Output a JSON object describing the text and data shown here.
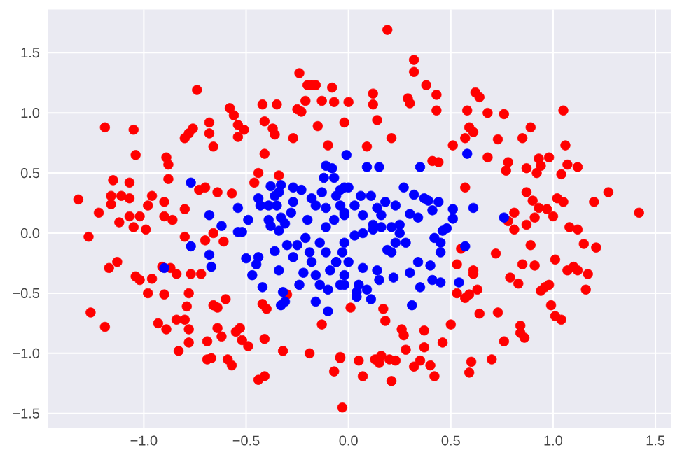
{
  "chart_data": {
    "type": "scatter",
    "series": [
      {
        "color": "#ff0000",
        "x": [
          -1.32,
          -1.27,
          -1.22,
          -1.19,
          -1.16,
          -1.16,
          -1.15,
          -1.12,
          -1.11,
          -1.07,
          -1.07,
          -1.07,
          -1.05,
          -1.04,
          -1.05,
          -1.02,
          -0.99,
          -0.98,
          -0.96,
          -0.9,
          -0.89,
          -0.88,
          -0.88,
          -0.9,
          -0.86,
          -0.8,
          -0.78,
          -0.76,
          -0.8,
          -0.74,
          -0.73,
          -0.7,
          -0.68,
          -0.68,
          -0.66,
          -0.64,
          -0.57,
          -0.58,
          -0.56,
          -0.54,
          -0.54,
          -0.51,
          -0.46,
          -0.44,
          -0.42,
          -0.41,
          -0.41,
          -0.37,
          -0.36,
          -0.35,
          -0.34,
          -0.27,
          -0.25,
          -0.23,
          -0.24,
          -0.2,
          -0.18,
          -0.16,
          -0.21,
          -0.13,
          -0.08,
          -0.07,
          -0.1,
          -0.15,
          -0.02,
          0.0,
          0.19,
          0.32,
          0.32,
          0.38,
          0.43,
          0.43,
          0.29,
          0.3,
          0.12,
          0.12,
          0.14,
          0.21,
          0.09,
          0.41,
          0.44,
          0.51,
          0.57,
          0.57,
          0.59,
          0.61,
          0.58,
          0.62,
          0.64,
          0.68,
          0.76,
          0.73,
          0.68,
          0.78,
          0.77,
          0.85,
          0.89,
          0.87,
          0.92,
          0.93,
          0.94,
          0.98,
          1.05,
          1.06,
          1.07,
          1.12,
          1.04,
          0.87,
          0.9,
          0.93,
          0.97,
          1.0,
          1.02,
          1.05,
          0.91,
          0.87,
          0.81,
          0.81,
          0.78,
          1.2,
          1.27,
          1.42,
          1.08,
          1.12,
          0.55,
          0.72,
          0.53,
          0.61,
          0.61,
          0.79,
          0.83,
          0.85,
          0.89,
          0.91,
          1.01,
          1.07,
          1.1,
          1.12,
          1.15,
          1.21,
          1.17,
          1.16,
          0.94,
          0.96,
          0.98,
          0.53,
          0.57,
          0.59,
          0.63,
          0.99,
          1.01,
          1.04,
          0.73,
          0.64,
          0.5,
          0.84,
          0.84,
          0.86,
          0.76,
          0.7,
          0.6,
          0.59,
          0.46,
          0.4,
          0.42,
          0.35,
          0.32,
          0.37,
          0.37,
          0.28,
          0.26,
          0.27,
          0.23,
          0.2,
          0.16,
          0.13,
          0.15,
          0.21,
          0.05,
          0.07,
          -0.04,
          -0.07,
          -0.03,
          0.01,
          0.17,
          0.18,
          -1.19,
          -1.26,
          -1.17,
          -1.13,
          -1.04,
          -1.02,
          -0.96,
          -0.98,
          -0.9,
          -0.91,
          -0.87,
          -0.84,
          -0.77,
          -0.72,
          -0.78,
          -0.79,
          -0.93,
          -0.89,
          -0.84,
          -0.8,
          -0.78,
          -0.78,
          -0.83,
          -0.69,
          -0.69,
          -0.67,
          -0.66,
          -0.64,
          -0.6,
          -0.64,
          -0.62,
          -0.59,
          -0.57,
          -0.55,
          -0.53,
          -0.52,
          -0.49,
          -0.44,
          -0.41,
          -0.42,
          -0.4,
          -0.41,
          -0.32,
          -0.3,
          -0.19,
          -0.13,
          -0.04,
          -0.7,
          -0.66,
          -0.61,
          -0.8
        ],
        "values": [
          0.28,
          -0.03,
          0.17,
          0.88,
          0.24,
          0.31,
          0.44,
          0.09,
          0.31,
          0.29,
          0.42,
          0.14,
          0.86,
          0.65,
          0.05,
          0.14,
          0.03,
          0.23,
          0.31,
          0.26,
          0.63,
          0.57,
          0.45,
          0.14,
          0.11,
          0.79,
          0.83,
          0.87,
          0.2,
          1.19,
          0.36,
          0.38,
          0.83,
          0.92,
          0.72,
          0.34,
          0.33,
          1.04,
          0.98,
          0.9,
          0.8,
          0.86,
          0.42,
          0.5,
          1.07,
          0.93,
          0.66,
          0.87,
          0.82,
          1.07,
          0.48,
          0.79,
          1.03,
          1.01,
          1.33,
          1.23,
          1.23,
          1.23,
          1.1,
          1.1,
          1.21,
          1.09,
          0.73,
          0.89,
          0.92,
          1.09,
          1.69,
          1.44,
          1.34,
          1.23,
          1.15,
          1.02,
          1.12,
          1.08,
          1.16,
          1.07,
          0.94,
          0.79,
          0.72,
          0.6,
          0.59,
          0.73,
          0.38,
          0.79,
          0.88,
          0.84,
          1.02,
          1.17,
          1.13,
          1.0,
          0.99,
          0.78,
          0.63,
          0.59,
          0.52,
          0.79,
          0.88,
          0.54,
          0.5,
          0.62,
          0.56,
          0.63,
          1.02,
          0.73,
          0.57,
          0.55,
          0.49,
          0.34,
          0.27,
          0.21,
          0.2,
          0.14,
          0.29,
          0.26,
          0.13,
          0.07,
          0.17,
          0.03,
          0.1,
          0.26,
          0.34,
          0.17,
          0.05,
          0.03,
          -0.13,
          -0.17,
          -0.26,
          -0.34,
          -0.31,
          -0.37,
          -0.42,
          -0.26,
          -0.1,
          -0.27,
          -0.22,
          -0.31,
          -0.28,
          -0.31,
          -0.09,
          -0.12,
          -0.34,
          -0.47,
          -0.48,
          -0.45,
          -0.43,
          -0.5,
          -0.54,
          -0.51,
          -0.47,
          -0.6,
          -0.69,
          -0.72,
          -0.66,
          -0.67,
          -0.76,
          -0.77,
          -0.83,
          -0.87,
          -0.9,
          -1.05,
          -1.07,
          -1.16,
          -0.91,
          -1.1,
          -1.19,
          -1.06,
          -1.11,
          -0.81,
          -0.95,
          -0.97,
          -0.8,
          -0.85,
          -1.06,
          -1.05,
          -1.02,
          -1.05,
          -1.08,
          -1.23,
          -1.06,
          -1.19,
          -1.04,
          -1.15,
          -1.45,
          -0.62,
          -0.63,
          -0.73,
          -0.78,
          -0.66,
          -0.29,
          -0.24,
          -0.36,
          -0.39,
          -0.38,
          -0.5,
          -0.51,
          -0.28,
          -0.29,
          -0.34,
          -0.34,
          -0.34,
          -0.5,
          -0.61,
          -0.75,
          -0.8,
          -0.72,
          -0.72,
          -0.8,
          -0.91,
          -0.98,
          -0.9,
          -1.05,
          -1.04,
          -0.6,
          -0.62,
          -0.55,
          -0.79,
          -0.86,
          -1.05,
          -1.1,
          -0.82,
          -0.79,
          -0.89,
          -0.94,
          -1.22,
          -1.19,
          -0.59,
          -0.63,
          -0.88,
          -0.98,
          -0.51,
          -1.0,
          -0.76,
          -1.03,
          -0.06,
          0.0,
          -0.07,
          -0.03
        ]
      },
      {
        "color": "#0000ff",
        "x": [
          -0.77,
          -0.68,
          -0.62,
          -0.54,
          -0.54,
          -0.52,
          -0.49,
          -0.44,
          -0.43,
          -0.39,
          -0.38,
          -0.36,
          -0.35,
          -0.34,
          -0.33,
          -0.39,
          -0.38,
          -0.33,
          -0.31,
          -0.34,
          -0.27,
          -0.23,
          -0.27,
          -0.28,
          -0.2,
          -0.18,
          -0.16,
          -0.13,
          -0.12,
          -0.11,
          -0.08,
          -0.11,
          -0.07,
          -0.06,
          -0.04,
          -0.02,
          -0.01,
          -0.11,
          -0.07,
          -0.02,
          0.09,
          0.15,
          0.35,
          0.58,
          0.61,
          0.76,
          0.27,
          0.32,
          0.37,
          0.39,
          0.44,
          0.41,
          0.51,
          0.51,
          0.48,
          0.3,
          0.34,
          0.25,
          0.21,
          0.18,
          0.23,
          0.14,
          0.11,
          0.06,
          0.0,
          -0.04,
          0.03,
          -0.02,
          0.07,
          0.16,
          0.12,
          0.57,
          0.54,
          0.31,
          0.45,
          0.41,
          0.35,
          0.3,
          0.34,
          0.4,
          0.45,
          0.45,
          0.42,
          0.46,
          0.28,
          0.23,
          0.21,
          0.25,
          0.19,
          0.22,
          0.15,
          0.09,
          0.04,
          0.04,
          0.11,
          0.14,
          0.07,
          0.05,
          -0.02,
          -0.04,
          0.0,
          -0.06,
          -0.02,
          0.03,
          0.07,
          0.12,
          0.16,
          -0.9,
          -0.77,
          -0.68,
          -0.67,
          -0.5,
          -0.47,
          -0.45,
          -0.44,
          -0.42,
          -0.36,
          -0.34,
          -0.32,
          -0.31,
          -0.33,
          -0.3,
          -0.27,
          -0.25,
          -0.24,
          -0.22,
          -0.21,
          -0.19,
          -0.18,
          -0.16,
          -0.14,
          -0.14,
          -0.11,
          -0.09,
          -0.06,
          -0.03,
          -0.02,
          -0.16,
          -0.1,
          -0.1
        ],
        "values": [
          0.42,
          0.15,
          0.06,
          0.21,
          0.01,
          0.01,
          0.11,
          0.29,
          0.23,
          0.23,
          0.39,
          0.31,
          0.23,
          0.34,
          0.4,
          0.11,
          0.06,
          0.13,
          0.08,
          0.02,
          0.38,
          0.36,
          0.26,
          0.17,
          0.11,
          0.29,
          0.23,
          0.34,
          0.46,
          0.56,
          0.54,
          0.21,
          0.46,
          0.31,
          0.23,
          0.38,
          0.65,
          0.05,
          0.11,
          0.15,
          0.55,
          0.55,
          0.55,
          0.66,
          0.21,
          0.13,
          0.38,
          0.32,
          0.29,
          0.27,
          0.26,
          0.19,
          0.2,
          0.12,
          0.04,
          0.16,
          0.13,
          0.07,
          0.05,
          0.26,
          0.23,
          0.21,
          0.31,
          0.31,
          0.38,
          0.36,
          0.23,
          0.17,
          0.15,
          0.15,
          0.07,
          -0.11,
          -0.41,
          -0.6,
          -0.41,
          -0.39,
          -0.45,
          -0.33,
          -0.24,
          -0.27,
          -0.16,
          -0.08,
          -0.04,
          0.02,
          -0.08,
          -0.08,
          -0.16,
          0.0,
          -0.14,
          -0.37,
          -0.39,
          -0.47,
          -0.49,
          -0.53,
          -0.55,
          -0.31,
          -0.29,
          -0.43,
          -0.35,
          -0.43,
          -0.24,
          -0.24,
          -0.08,
          -0.02,
          0.0,
          0.03,
          0.05,
          -0.29,
          -0.11,
          -0.18,
          -0.28,
          -0.21,
          -0.35,
          -0.26,
          -0.2,
          -0.45,
          -0.15,
          -0.31,
          -0.49,
          -0.57,
          -0.6,
          -0.1,
          -0.2,
          -0.1,
          -0.43,
          -0.33,
          -0.04,
          -0.16,
          -0.24,
          -0.35,
          -0.43,
          -0.08,
          -0.16,
          -0.31,
          -0.24,
          -0.16,
          -0.43,
          -0.57,
          -0.65,
          -0.47
        ]
      }
    ],
    "xlim": [
      -1.47,
      1.575
    ],
    "ylim": [
      -1.62,
      1.86
    ],
    "xticks": [
      {
        "value": -1,
        "label": "−1.0"
      },
      {
        "value": -0.5,
        "label": "−0.5"
      },
      {
        "value": 0,
        "label": "0.0"
      },
      {
        "value": 0.5,
        "label": "0.5"
      },
      {
        "value": 1,
        "label": "1.0"
      },
      {
        "value": 1.5,
        "label": "1.5"
      }
    ],
    "yticks": [
      {
        "value": -1.5,
        "label": "−1.5"
      },
      {
        "value": -1,
        "label": "−1.0"
      },
      {
        "value": -0.5,
        "label": "−0.5"
      },
      {
        "value": 0,
        "label": "0.0"
      },
      {
        "value": 0.5,
        "label": "0.5"
      },
      {
        "value": 1,
        "label": "1.0"
      },
      {
        "value": 1.5,
        "label": "1.5"
      }
    ],
    "grid": true,
    "marker": "circle"
  }
}
